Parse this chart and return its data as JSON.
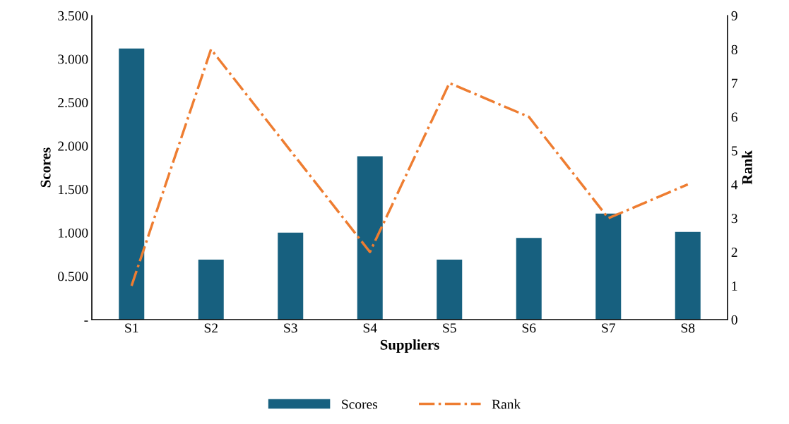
{
  "chart_data": {
    "type": "bar",
    "xlabel": "Suppliers",
    "ylabel": "Scores",
    "y2label": "Rank",
    "categories": [
      "S1",
      "S2",
      "S3",
      "S4",
      "S5",
      "S6",
      "S7",
      "S8"
    ],
    "series": [
      {
        "name": "Scores",
        "color": "#17607f",
        "values": [
          3.12,
          0.69,
          1.0,
          1.88,
          0.69,
          0.94,
          1.22,
          1.01
        ]
      },
      {
        "name": "Rank",
        "type": "line",
        "axis": "y2",
        "color": "#ee7d31",
        "line_style": "dashdot",
        "values": [
          1,
          8,
          5,
          2,
          7,
          6,
          3,
          4
        ]
      }
    ],
    "ylim": [
      0,
      3.5
    ],
    "yticks": [
      {
        "value": 0,
        "label": "-"
      },
      {
        "value": 0.5,
        "label": "0.500"
      },
      {
        "value": 1,
        "label": "1.000"
      },
      {
        "value": 1.5,
        "label": "1.500"
      },
      {
        "value": 2,
        "label": "2.000"
      },
      {
        "value": 2.5,
        "label": "2.500"
      },
      {
        "value": 3,
        "label": "3.000"
      },
      {
        "value": 3.5,
        "label": "3.500"
      }
    ],
    "y2lim": [
      0,
      9
    ],
    "y2ticks": [
      0,
      1,
      2,
      3,
      4,
      5,
      6,
      7,
      8,
      9
    ],
    "grid": false,
    "legend": "bottom"
  }
}
